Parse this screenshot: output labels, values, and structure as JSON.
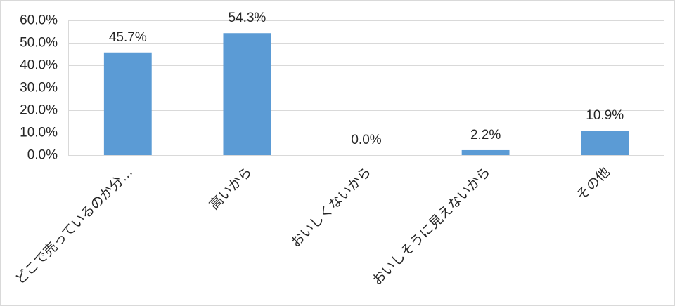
{
  "chart_data": {
    "type": "bar",
    "categories": [
      "どこで売っているのか分…",
      "高いから",
      "おいしくないから",
      "おいしそうに見えないから",
      "その他"
    ],
    "values": [
      45.7,
      54.3,
      0.0,
      2.2,
      10.9
    ],
    "data_labels": [
      "45.7%",
      "54.3%",
      "0.0%",
      "2.2%",
      "10.9%"
    ],
    "ylim": [
      0,
      60
    ],
    "yticks": [
      0,
      10,
      20,
      30,
      40,
      50,
      60
    ],
    "ytick_labels": [
      "0.0%",
      "10.0%",
      "20.0%",
      "30.0%",
      "40.0%",
      "50.0%",
      "60.0%"
    ],
    "grid": true,
    "legend": "none",
    "colors": {
      "bar": "#5b9bd5",
      "gridline": "#d9d9d9",
      "border": "#d9d9d9",
      "text": "#262626",
      "background": "#ffffff"
    }
  }
}
